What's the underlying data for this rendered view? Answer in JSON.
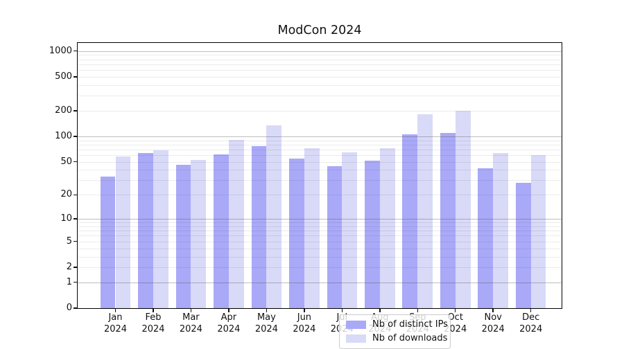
{
  "chart_data": {
    "type": "bar",
    "title": "ModCon 2024",
    "months": [
      "Jan",
      "Feb",
      "Mar",
      "Apr",
      "May",
      "Jun",
      "Jul",
      "Aug",
      "Sep",
      "Oct",
      "Nov",
      "Dec"
    ],
    "year_label": "2024",
    "series": [
      {
        "name": "Nb of distinct IPs",
        "color": "#a9a9f8",
        "values": [
          33,
          64,
          46,
          61,
          77,
          55,
          44,
          52,
          105,
          110,
          42,
          28
        ]
      },
      {
        "name": "Nb of downloads",
        "color": "#d9d9f8",
        "values": [
          58,
          68,
          53,
          90,
          135,
          73,
          65,
          72,
          180,
          200,
          64,
          60
        ]
      }
    ],
    "y_ticks": [
      0,
      1,
      2,
      5,
      10,
      20,
      50,
      100,
      200,
      500,
      1000
    ],
    "y_scale": "log10(1+x)",
    "ylim": [
      0,
      1240
    ],
    "grid": true,
    "legend_position": "lower center",
    "colors": {
      "grid_major": "#c6c6c6",
      "grid_minor": "#ececec",
      "axis": "#000000"
    }
  }
}
